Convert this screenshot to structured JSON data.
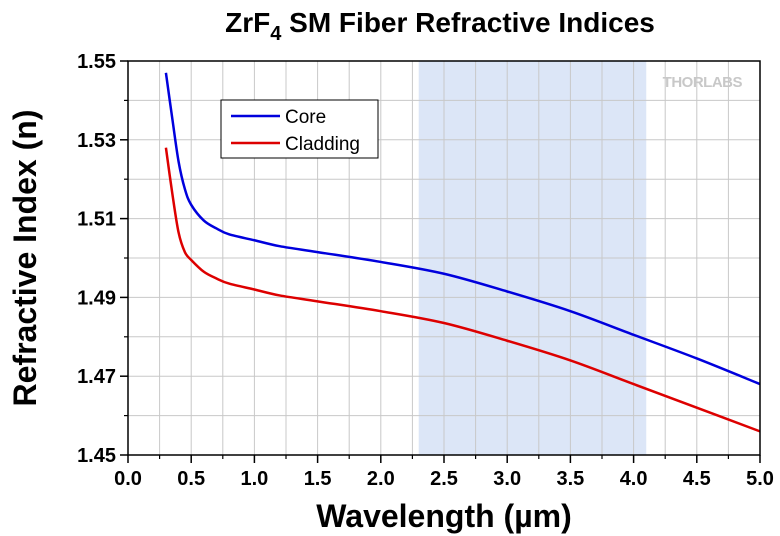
{
  "chart_data": {
    "type": "line",
    "title_main": "ZrF",
    "title_sub": "4",
    "title_rest": " SM Fiber Refractive Indices",
    "xlabel": "Wavelength (µm)",
    "ylabel": "Refractive Index (n)",
    "xlim": [
      0.0,
      5.0
    ],
    "ylim": [
      1.45,
      1.55
    ],
    "x_ticks": [
      0.0,
      0.5,
      1.0,
      1.5,
      2.0,
      2.5,
      3.0,
      3.5,
      4.0,
      4.5,
      5.0
    ],
    "x_tick_labels": [
      "0.0",
      "0.5",
      "1.0",
      "1.5",
      "2.0",
      "2.5",
      "3.0",
      "3.5",
      "4.0",
      "4.5",
      "5.0"
    ],
    "y_ticks": [
      1.45,
      1.47,
      1.49,
      1.51,
      1.53,
      1.55
    ],
    "y_tick_labels": [
      "1.45",
      "1.47",
      "1.49",
      "1.51",
      "1.53",
      "1.55"
    ],
    "grid": true,
    "legend_position": "top-left",
    "highlight_band": {
      "x_start": 2.3,
      "x_end": 4.1,
      "color": "#dce6f7"
    },
    "watermark": "THORLABS",
    "series": [
      {
        "name": "Core",
        "color": "#0000dd",
        "x": [
          0.3,
          0.35,
          0.4,
          0.45,
          0.5,
          0.6,
          0.7,
          0.8,
          1.0,
          1.2,
          1.5,
          2.0,
          2.5,
          3.0,
          3.5,
          4.0,
          4.5,
          5.0
        ],
        "y": [
          1.547,
          1.5355,
          1.5245,
          1.5175,
          1.5135,
          1.5095,
          1.5075,
          1.506,
          1.5045,
          1.503,
          1.5015,
          1.499,
          1.496,
          1.4915,
          1.4865,
          1.4805,
          1.4745,
          1.468
        ]
      },
      {
        "name": "Cladding",
        "color": "#dd0000",
        "x": [
          0.3,
          0.35,
          0.4,
          0.45,
          0.5,
          0.6,
          0.7,
          0.8,
          1.0,
          1.2,
          1.5,
          2.0,
          2.5,
          3.0,
          3.5,
          4.0,
          4.5,
          5.0
        ],
        "y": [
          1.528,
          1.5165,
          1.5065,
          1.5015,
          1.4995,
          1.4965,
          1.4948,
          1.4935,
          1.492,
          1.4905,
          1.489,
          1.4865,
          1.4835,
          1.479,
          1.474,
          1.468,
          1.462,
          1.456
        ]
      }
    ]
  }
}
